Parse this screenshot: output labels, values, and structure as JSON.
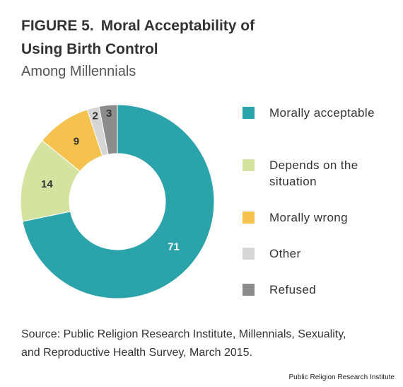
{
  "chart_data": {
    "type": "donut",
    "figure_label": "FIGURE 5.",
    "title": "Moral Acceptability of Using Birth Control",
    "subtitle": "Among Millennials",
    "categories": [
      "Morally acceptable",
      "Depends on the situation",
      "Morally wrong",
      "Other",
      "Refused"
    ],
    "values": [
      71,
      14,
      9,
      2,
      3
    ],
    "colors": [
      "#2aa3aa",
      "#d5e3a1",
      "#f5c24f",
      "#d6d6d6",
      "#8c8c8c"
    ],
    "label_colors": [
      "#ffffff",
      "#333333",
      "#333333",
      "#333333",
      "#333333"
    ],
    "legend": "right",
    "source": "Source: Public Religion Research Institute, Millennials, Sexuality, and Reproductive Health Survey, March 2015.",
    "credit": "Public Religion Research Institute"
  }
}
